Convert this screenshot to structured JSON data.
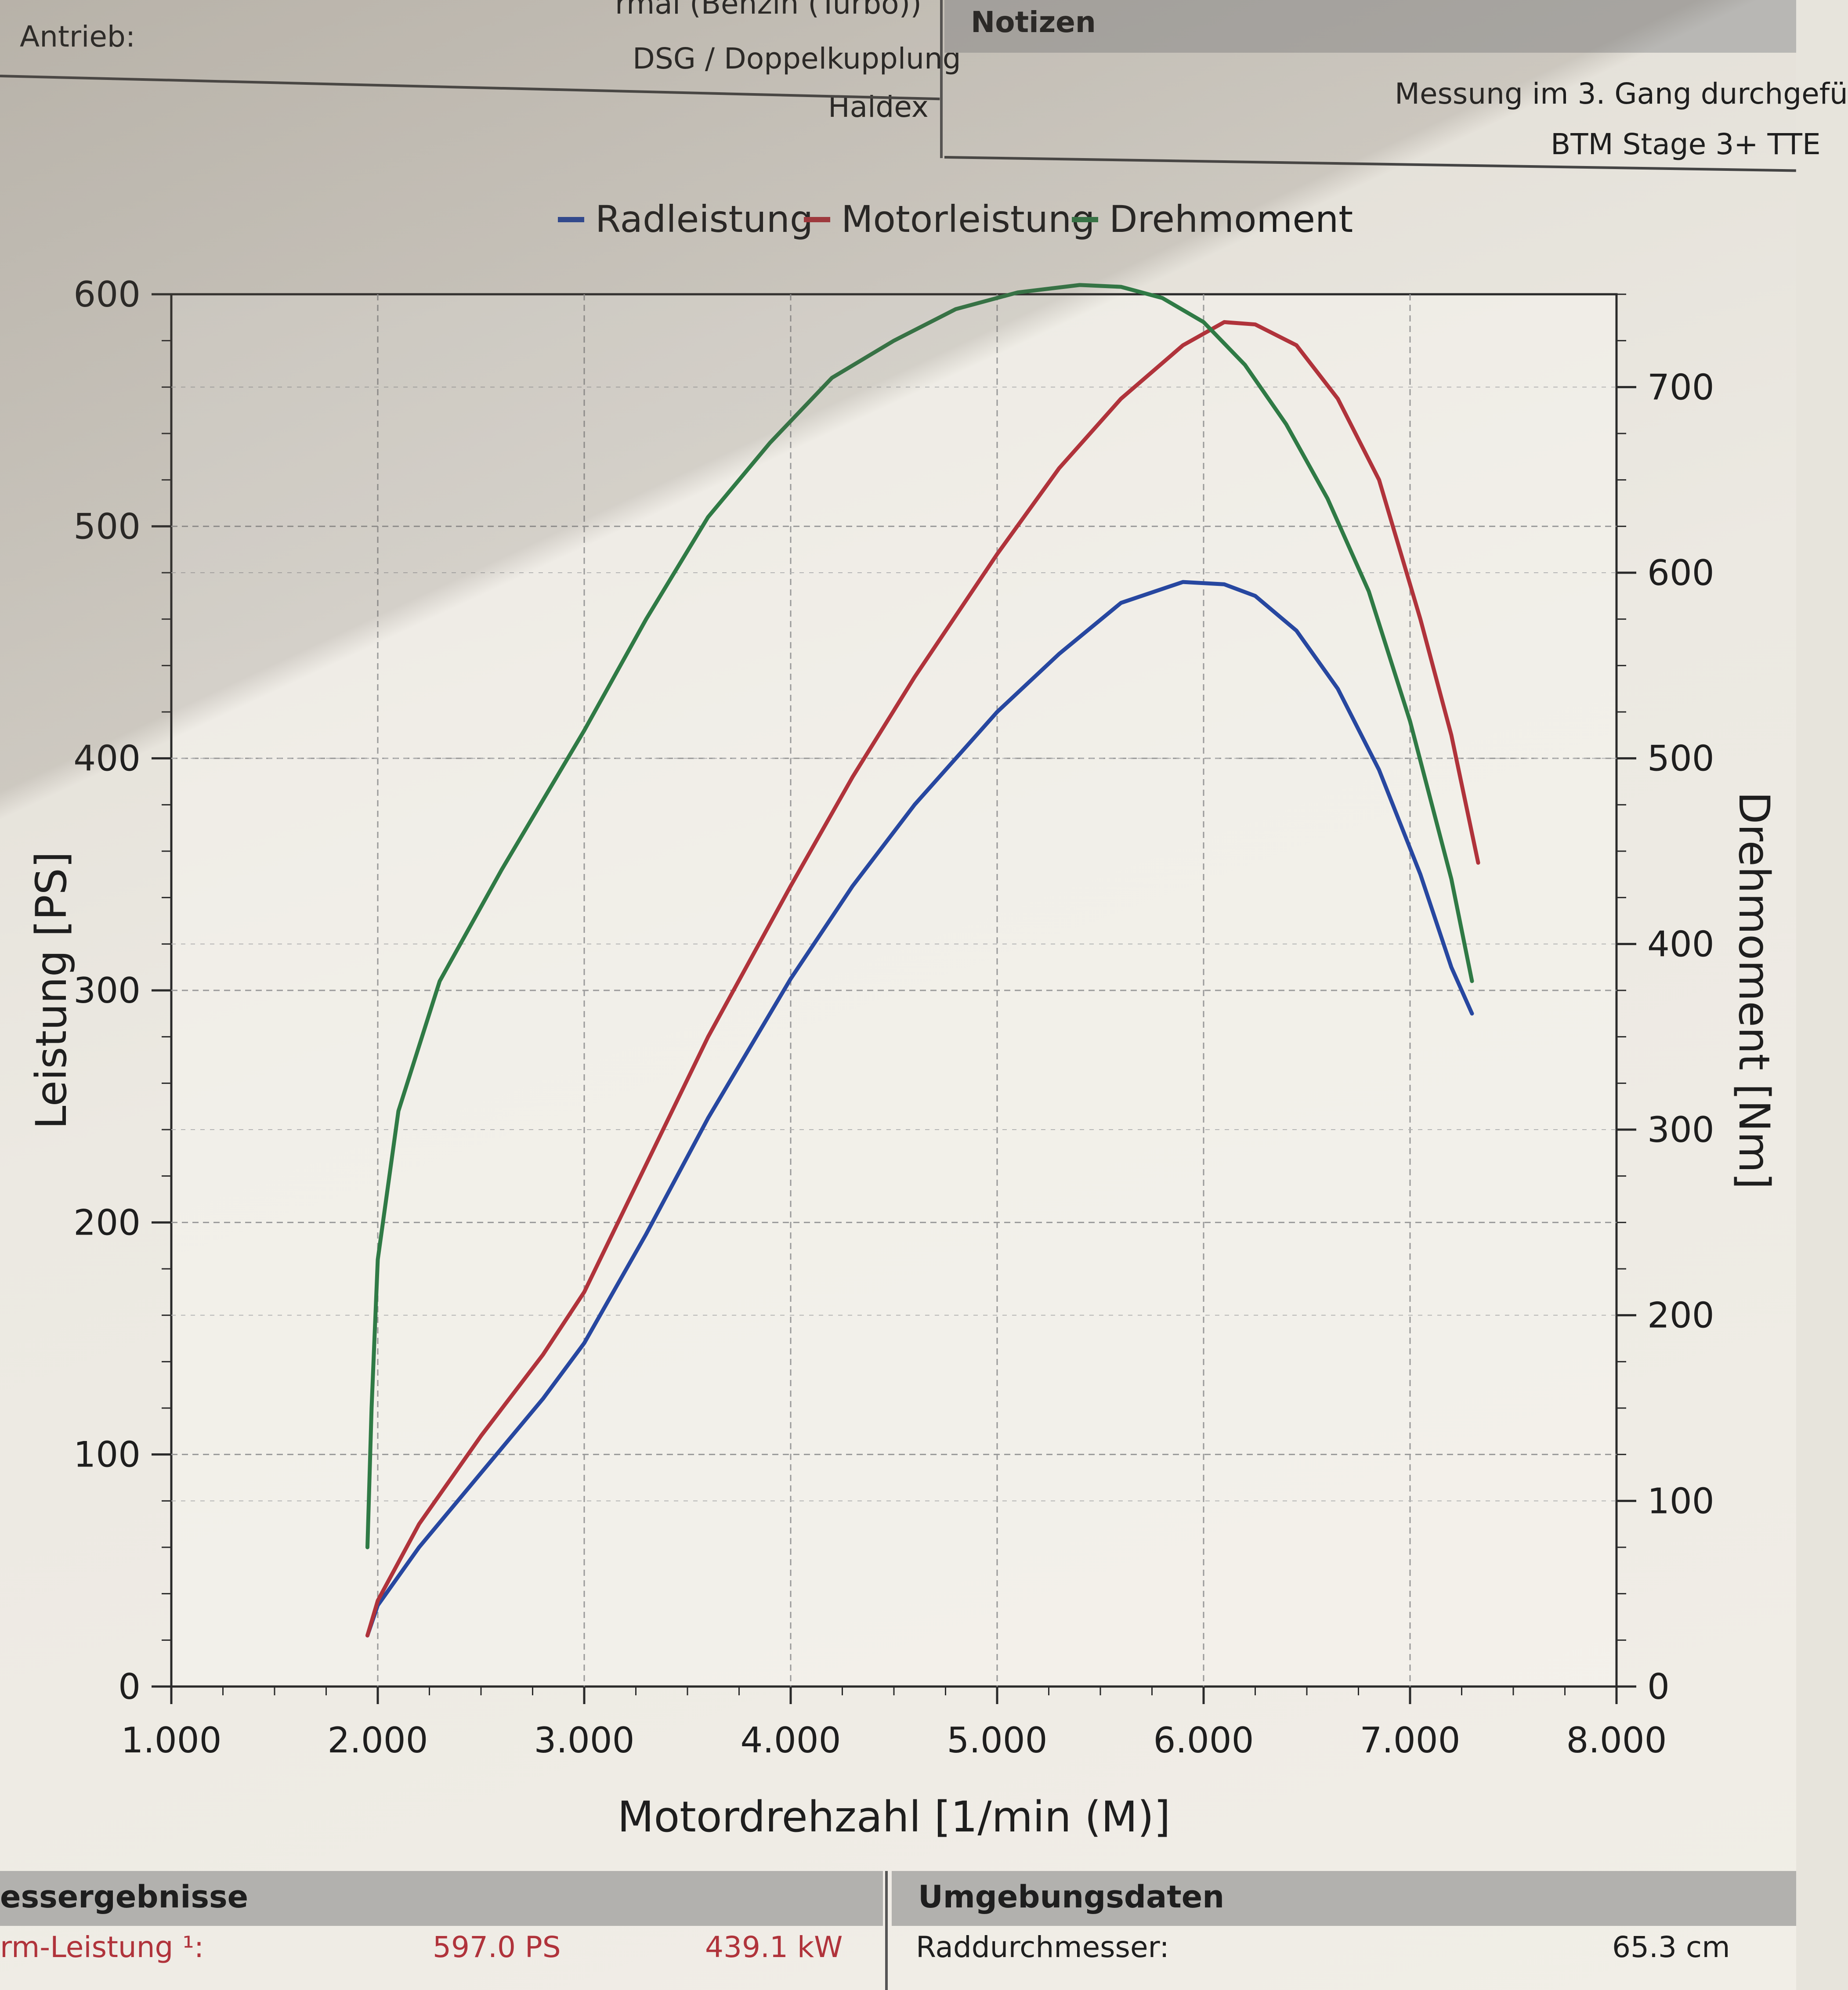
{
  "header": {
    "engine_value": "rmal (Benzin (Turbo))",
    "drive_label": "Antrieb:",
    "transmission_value": "DSG / Doppelkupplung",
    "drive_value": "Haldex",
    "notes_title": "Notizen",
    "notes_line1": "Messung im 3. Gang durchgefü",
    "notes_line2": "BTM Stage 3+ TTE"
  },
  "chart_data": {
    "type": "line",
    "xlabel": "Motordrehzahl [1/min (M)]",
    "ylabel": "Leistung [PS]",
    "y2label": "Drehmoment [Nm]",
    "xlim": [
      1000,
      8000
    ],
    "ylim": [
      0,
      600
    ],
    "y2lim": [
      0,
      750
    ],
    "x_ticks": [
      "1.000",
      "2.000",
      "3.000",
      "4.000",
      "5.000",
      "6.000",
      "7.000",
      "8.000"
    ],
    "x_tick_values": [
      1000,
      2000,
      3000,
      4000,
      5000,
      6000,
      7000,
      8000
    ],
    "y_ticks": [
      "0",
      "100",
      "200",
      "300",
      "400",
      "500",
      "600"
    ],
    "y_tick_values": [
      0,
      100,
      200,
      300,
      400,
      500,
      600
    ],
    "y2_ticks": [
      "0",
      "100",
      "200",
      "300",
      "400",
      "500",
      "600",
      "700"
    ],
    "y2_tick_values": [
      0,
      100,
      200,
      300,
      400,
      500,
      600,
      700
    ],
    "grid": true,
    "legend_position": "top",
    "series": [
      {
        "name": "Radleistung",
        "color": "#2747a0",
        "axis": "left",
        "x": [
          1950,
          2000,
          2200,
          2500,
          2800,
          3000,
          3300,
          3600,
          4000,
          4300,
          4600,
          5000,
          5300,
          5600,
          5900,
          6100,
          6250,
          6450,
          6650,
          6850,
          7050,
          7200,
          7300
        ],
        "y": [
          22,
          35,
          60,
          92,
          124,
          148,
          195,
          245,
          305,
          345,
          380,
          420,
          445,
          467,
          476,
          475,
          470,
          455,
          430,
          395,
          350,
          310,
          290
        ]
      },
      {
        "name": "Motorleistung",
        "color": "#b0333b",
        "axis": "left",
        "x": [
          1950,
          2000,
          2200,
          2500,
          2800,
          3000,
          3300,
          3600,
          4000,
          4300,
          4600,
          5000,
          5300,
          5600,
          5900,
          6100,
          6250,
          6450,
          6650,
          6850,
          7050,
          7200,
          7330
        ],
        "y": [
          22,
          37,
          70,
          108,
          143,
          170,
          225,
          280,
          345,
          392,
          435,
          488,
          525,
          555,
          578,
          588,
          587,
          578,
          555,
          520,
          460,
          410,
          355
        ]
      },
      {
        "name": "Drehmoment",
        "color": "#2f7a45",
        "axis": "right",
        "x": [
          1950,
          1970,
          2000,
          2100,
          2300,
          2600,
          3000,
          3300,
          3600,
          3900,
          4200,
          4500,
          4800,
          5100,
          5400,
          5600,
          5800,
          6000,
          6200,
          6400,
          6600,
          6800,
          7000,
          7200,
          7300
        ],
        "y": [
          75,
          150,
          230,
          310,
          380,
          440,
          515,
          575,
          630,
          670,
          705,
          725,
          742,
          751,
          755,
          754,
          748,
          735,
          712,
          680,
          640,
          590,
          520,
          435,
          380
        ]
      }
    ]
  },
  "results": {
    "title": "essergebnisse",
    "row_label": "rm-Leistung ¹:",
    "ps_value": "597.0 PS",
    "kw_value": "439.1 kW"
  },
  "environment": {
    "title": "Umgebungsdaten",
    "row_label": "Raddurchmesser:",
    "row_value": "65.3 cm"
  }
}
